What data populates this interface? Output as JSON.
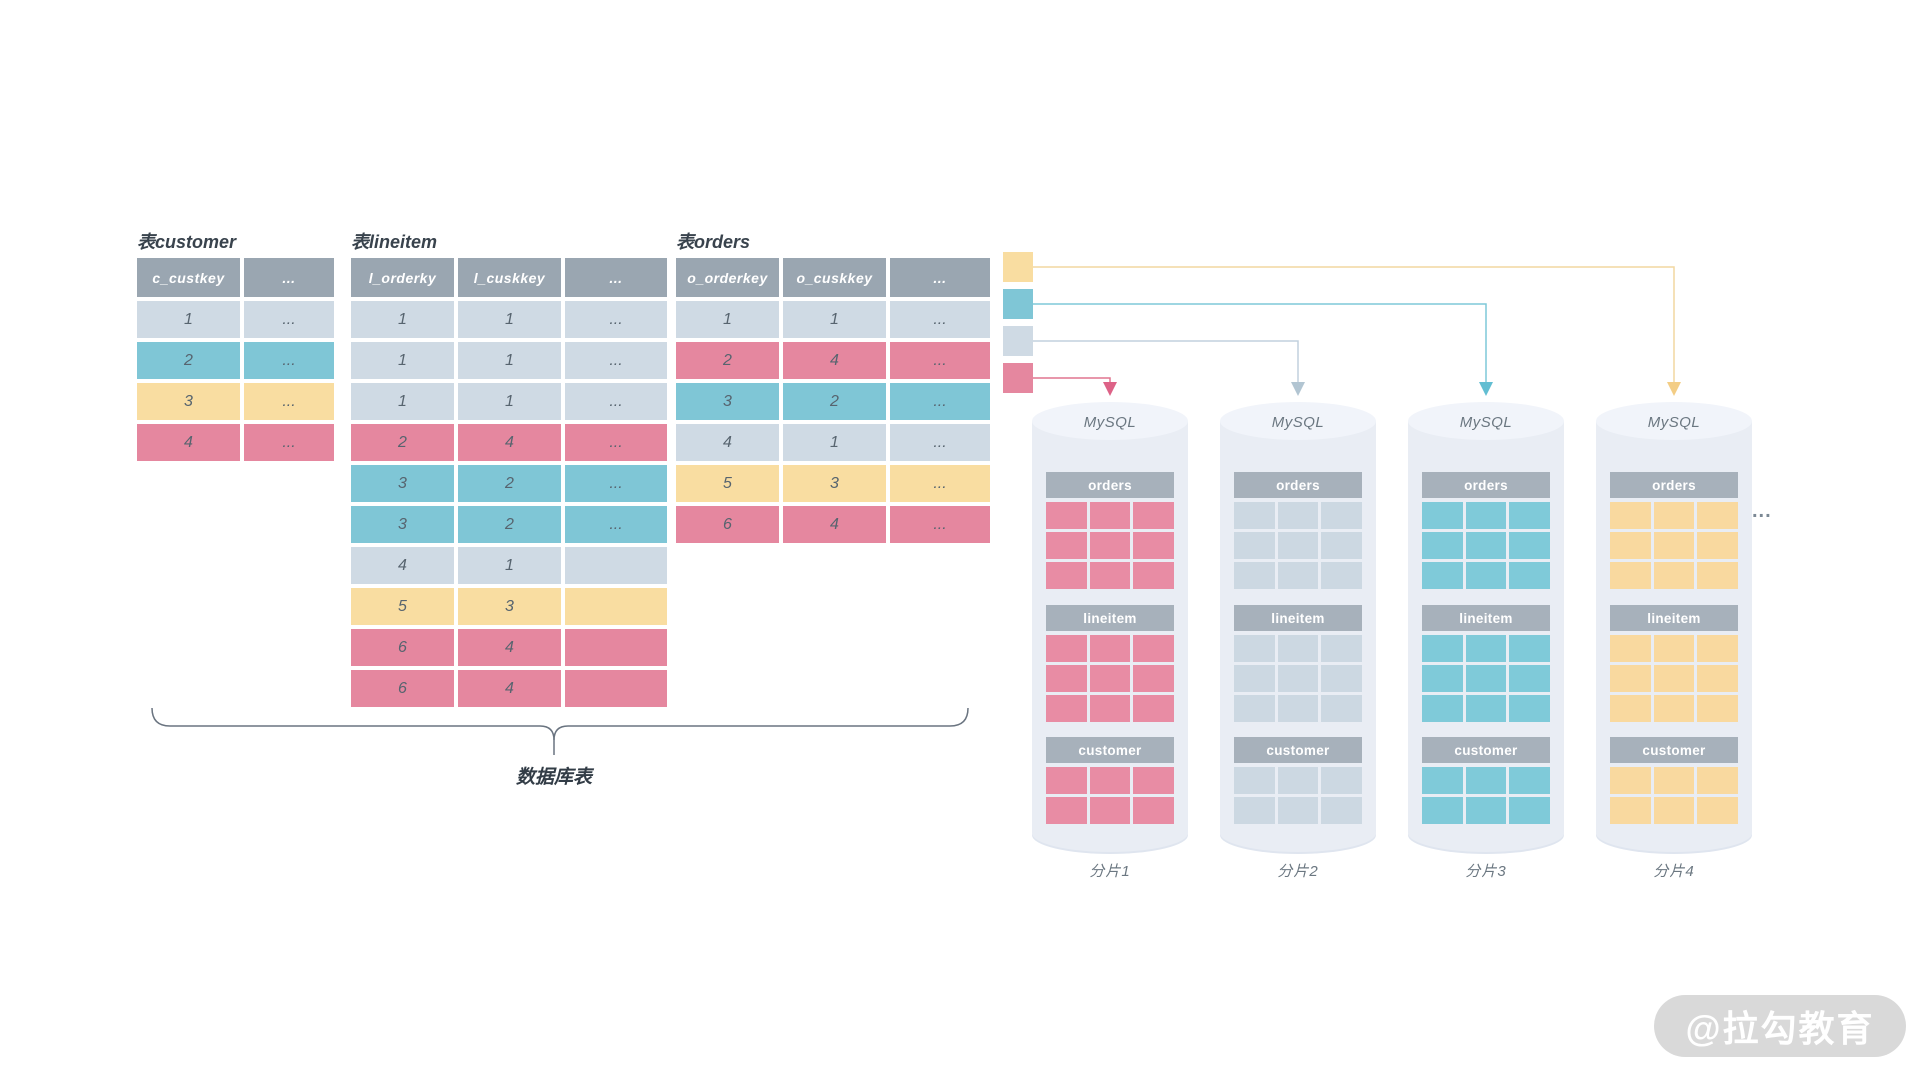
{
  "diagram": {
    "tables": [
      {
        "title": "表customer",
        "columns": [
          "c_custkey",
          "..."
        ],
        "rows": [
          {
            "color": "light",
            "cells": [
              "1",
              "..."
            ]
          },
          {
            "color": "teal",
            "cells": [
              "2",
              "..."
            ]
          },
          {
            "color": "yellow",
            "cells": [
              "3",
              "..."
            ]
          },
          {
            "color": "pink",
            "cells": [
              "4",
              "..."
            ]
          }
        ]
      },
      {
        "title": "表lineitem",
        "columns": [
          "l_orderky",
          "l_cuskkey",
          "..."
        ],
        "rows": [
          {
            "color": "light",
            "cells": [
              "1",
              "1",
              "..."
            ]
          },
          {
            "color": "light",
            "cells": [
              "1",
              "1",
              "..."
            ]
          },
          {
            "color": "light",
            "cells": [
              "1",
              "1",
              "..."
            ]
          },
          {
            "color": "pink",
            "cells": [
              "2",
              "4",
              "..."
            ]
          },
          {
            "color": "teal",
            "cells": [
              "3",
              "2",
              "..."
            ]
          },
          {
            "color": "teal",
            "cells": [
              "3",
              "2",
              "..."
            ]
          },
          {
            "color": "light",
            "cells": [
              "4",
              "1",
              ""
            ]
          },
          {
            "color": "yellow",
            "cells": [
              "5",
              "3",
              ""
            ]
          },
          {
            "color": "pink",
            "cells": [
              "6",
              "4",
              ""
            ]
          },
          {
            "color": "pink",
            "cells": [
              "6",
              "4",
              ""
            ]
          }
        ]
      },
      {
        "title": "表orders",
        "columns": [
          "o_orderkey",
          "o_cuskkey",
          "..."
        ],
        "rows": [
          {
            "color": "light",
            "cells": [
              "1",
              "1",
              "..."
            ]
          },
          {
            "color": "pink",
            "cells": [
              "2",
              "4",
              "..."
            ]
          },
          {
            "color": "teal",
            "cells": [
              "3",
              "2",
              "..."
            ]
          },
          {
            "color": "light",
            "cells": [
              "4",
              "1",
              "..."
            ]
          },
          {
            "color": "yellow",
            "cells": [
              "5",
              "3",
              "..."
            ]
          },
          {
            "color": "pink",
            "cells": [
              "6",
              "4",
              "..."
            ]
          }
        ]
      }
    ],
    "bracket_label": "数据库表",
    "legend": [
      {
        "color": "yellow",
        "hex": "#f9dda1",
        "target": "分片4"
      },
      {
        "color": "teal",
        "hex": "#7fc6d6",
        "target": "分片3"
      },
      {
        "color": "light",
        "hex": "#cfdae4",
        "target": "分片2"
      },
      {
        "color": "pink",
        "hex": "#e5879f",
        "target": "分片1"
      }
    ],
    "shards": [
      {
        "db": "MySQL",
        "label": "分片1",
        "color": "pink",
        "tables": [
          {
            "name": "orders",
            "rows": 3,
            "cols": 3
          },
          {
            "name": "lineitem",
            "rows": 3,
            "cols": 3
          },
          {
            "name": "customer",
            "rows": 2,
            "cols": 3
          }
        ]
      },
      {
        "db": "MySQL",
        "label": "分片2",
        "color": "light",
        "tables": [
          {
            "name": "orders",
            "rows": 3,
            "cols": 3
          },
          {
            "name": "lineitem",
            "rows": 3,
            "cols": 3
          },
          {
            "name": "customer",
            "rows": 2,
            "cols": 3
          }
        ]
      },
      {
        "db": "MySQL",
        "label": "分片3",
        "color": "teal",
        "tables": [
          {
            "name": "orders",
            "rows": 3,
            "cols": 3
          },
          {
            "name": "lineitem",
            "rows": 3,
            "cols": 3
          },
          {
            "name": "customer",
            "rows": 2,
            "cols": 3
          }
        ]
      },
      {
        "db": "MySQL",
        "label": "分片4",
        "color": "yellow",
        "tables": [
          {
            "name": "orders",
            "rows": 3,
            "cols": 3
          },
          {
            "name": "lineitem",
            "rows": 3,
            "cols": 3
          },
          {
            "name": "customer",
            "rows": 2,
            "cols": 3
          }
        ]
      }
    ],
    "more_indicator": "...",
    "watermark": "@拉勾教育"
  },
  "colors": {
    "table_header_bg": "#9aa6b1",
    "row_light": "#cfdae4",
    "row_teal": "#7fc6d6",
    "row_yellow": "#f9dda1",
    "row_pink": "#e5879f",
    "cylinder_body": "#e9edf4",
    "mini_table_header_bg": "#a7b1bb",
    "arrow_pink": "#e0758f",
    "arrow_gray": "#c2d1dd",
    "arrow_teal": "#7ec9d8",
    "arrow_yellow": "#f2d7a0"
  }
}
